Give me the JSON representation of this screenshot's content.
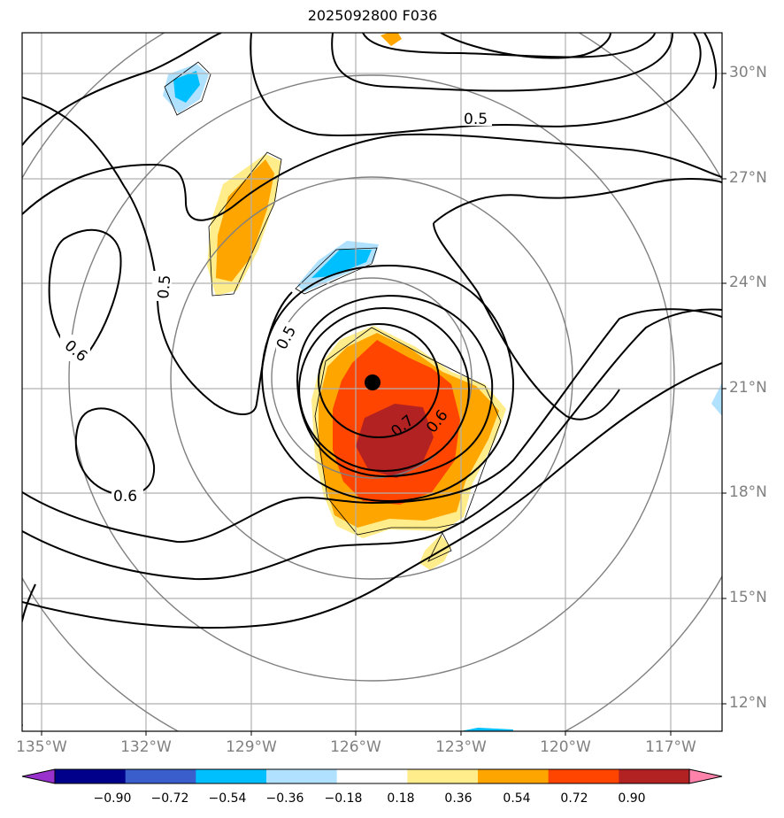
{
  "title": "2025092800 F036",
  "lat_labels": [
    "30°N",
    "27°N",
    "24°N",
    "21°N",
    "18°N",
    "15°N",
    "12°N"
  ],
  "lon_labels": [
    "135°W",
    "132°W",
    "129°W",
    "126°W",
    "123°W",
    "120°W",
    "117°W"
  ],
  "contour_labels": [
    "0.5",
    "0.5",
    "0.5",
    "0.6",
    "0.6",
    "0.6",
    "0.7"
  ],
  "colorbar": {
    "ticks": [
      "−0.90",
      "−0.72",
      "−0.54",
      "−0.36",
      "−0.18",
      "0.18",
      "0.36",
      "0.54",
      "0.72",
      "0.90"
    ],
    "colors": [
      "#9932cc",
      "#00008b",
      "#3a5fcd",
      "#00bfff",
      "#b0e2ff",
      "#ffffff",
      "#ffec8b",
      "#ffa500",
      "#ff4500",
      "#b22222",
      "#ff82ab"
    ]
  },
  "storm_center": {
    "lat": 21.1,
    "lon": "125.5°W"
  }
}
